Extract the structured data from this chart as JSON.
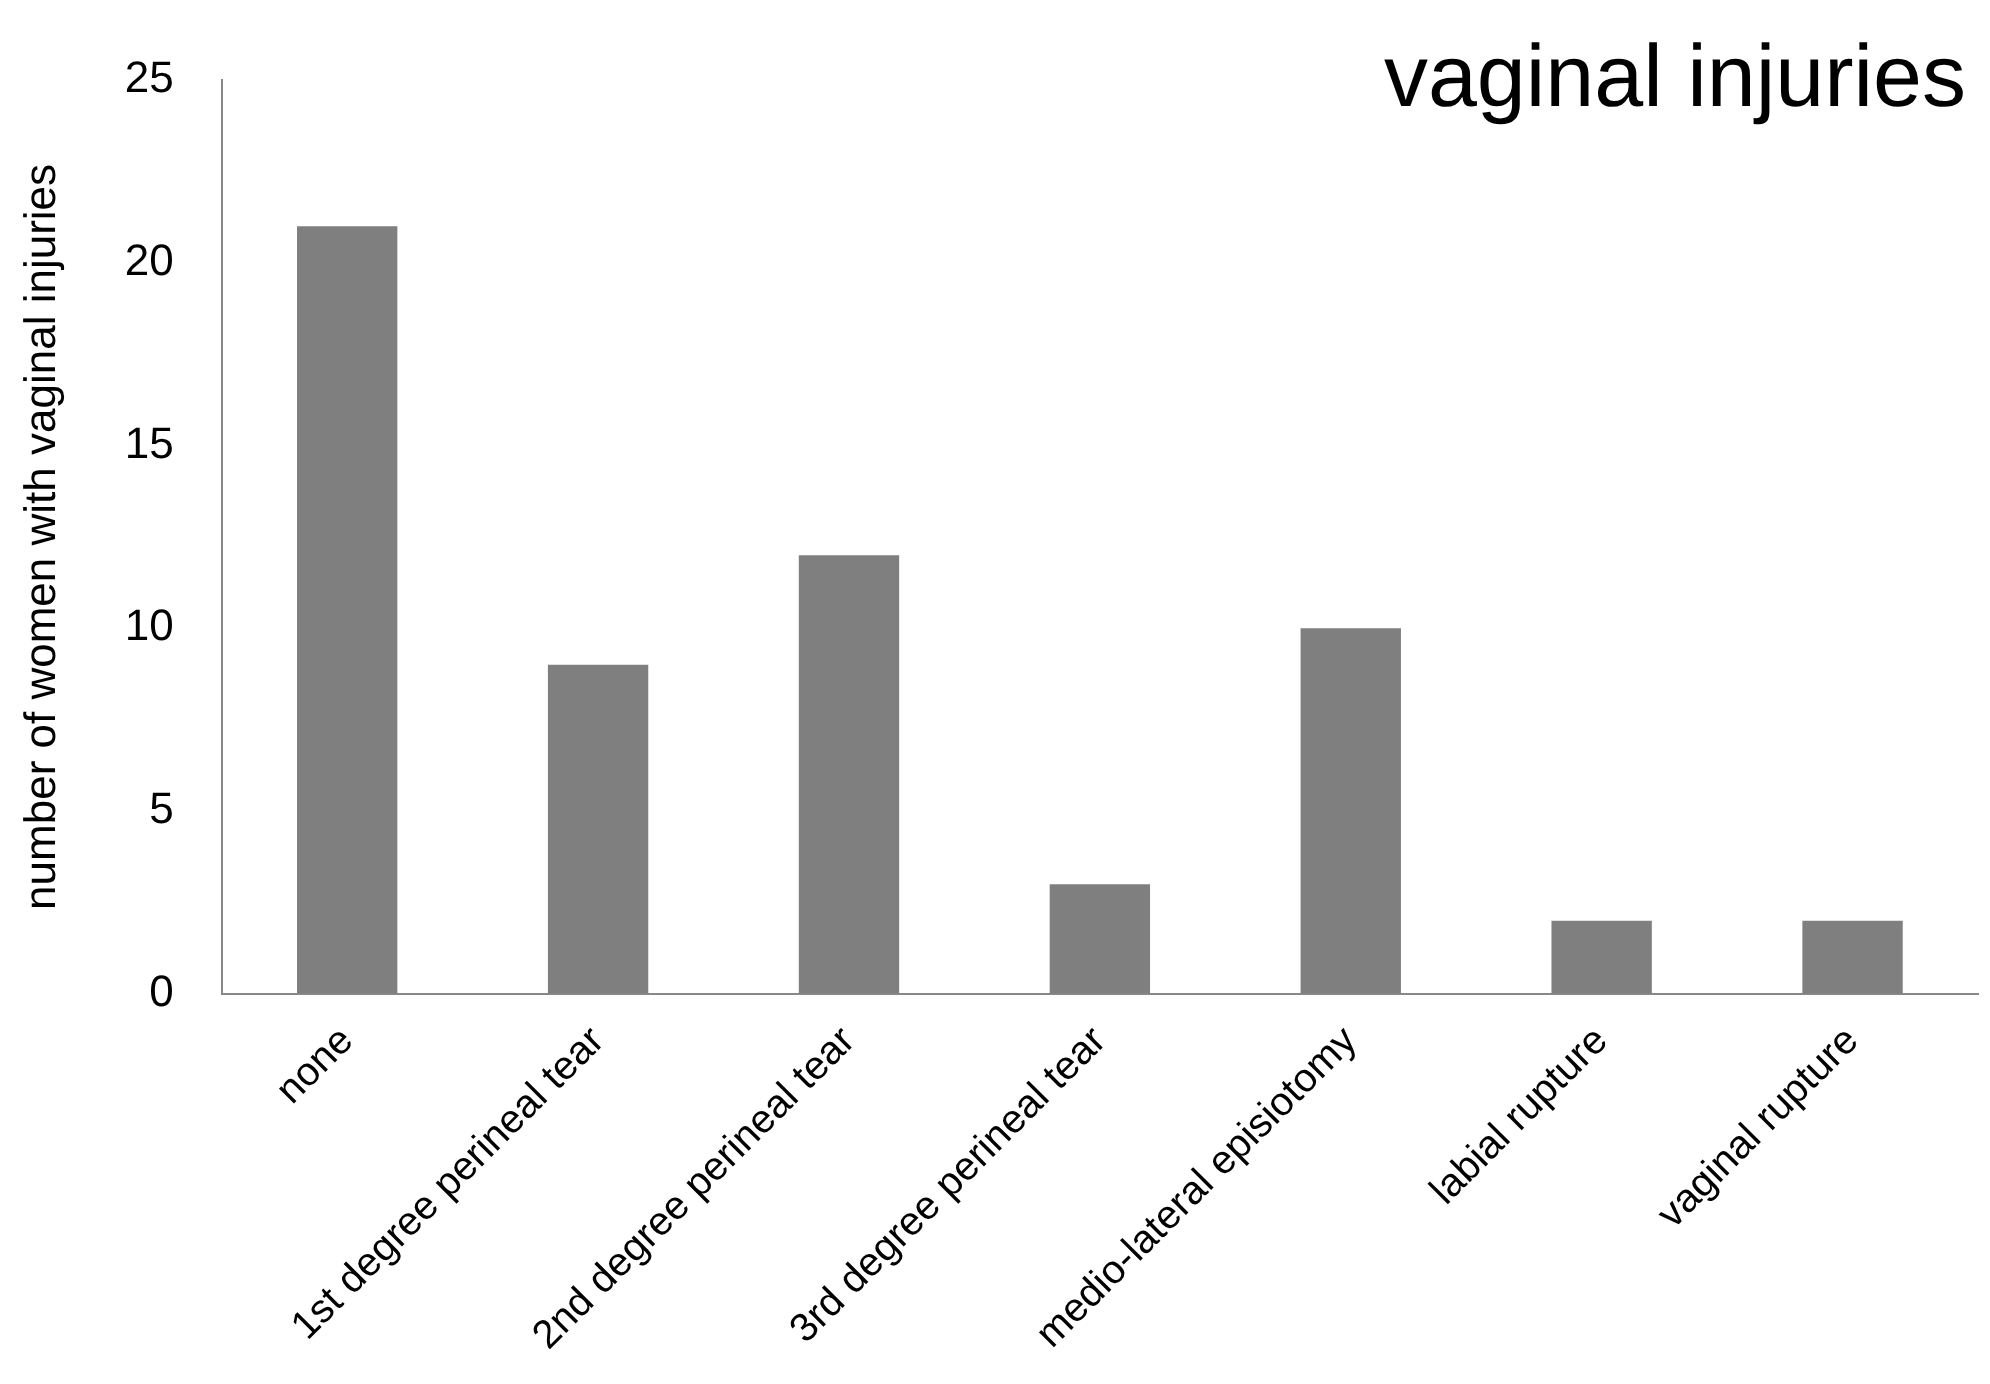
{
  "chart_data": {
    "type": "bar",
    "title": "vaginal injuries",
    "ylabel": "number of women with vaginal injuries",
    "categories": [
      "none",
      "1st degree perineal tear",
      "2nd degree perineal tear",
      "3rd degree perineal tear",
      "medio-lateral episiotomy",
      "labial rupture",
      "vaginal rupture"
    ],
    "values": [
      21,
      9,
      12,
      3,
      10,
      2,
      2
    ],
    "color": "#7f7f7f",
    "ylim": [
      0,
      25
    ],
    "yticks": [
      0,
      5,
      10,
      15,
      20,
      25
    ],
    "grid": false,
    "legend": false
  }
}
